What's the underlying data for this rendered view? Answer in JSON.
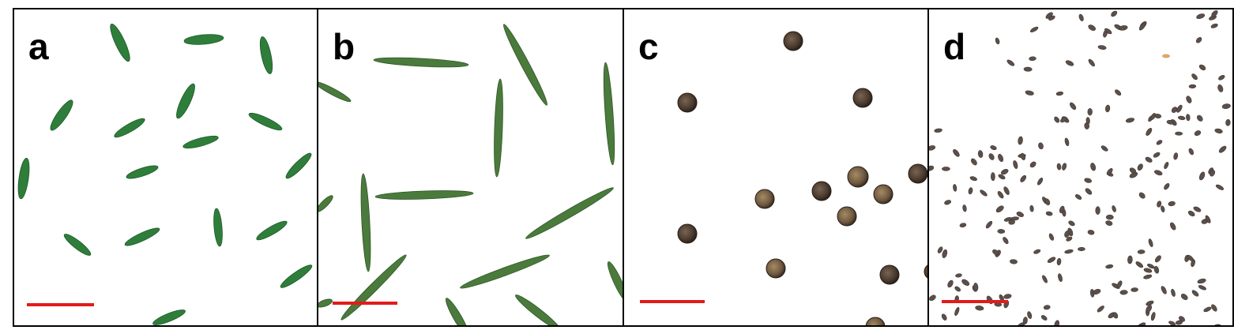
{
  "colors": {
    "border": "#000000",
    "scale_bar": "#e31b1b",
    "leaf_green": "#2f7d3a",
    "needle_green": "#4a7a3c",
    "seed_brown": "#5a4638",
    "grain_gray": "#5b4f4a"
  },
  "panels": [
    {
      "label": "a",
      "content": "green-leaflets"
    },
    {
      "label": "b",
      "content": "green-needles"
    },
    {
      "label": "c",
      "content": "round-brown-seeds"
    },
    {
      "label": "d",
      "content": "small-dark-grains"
    }
  ]
}
